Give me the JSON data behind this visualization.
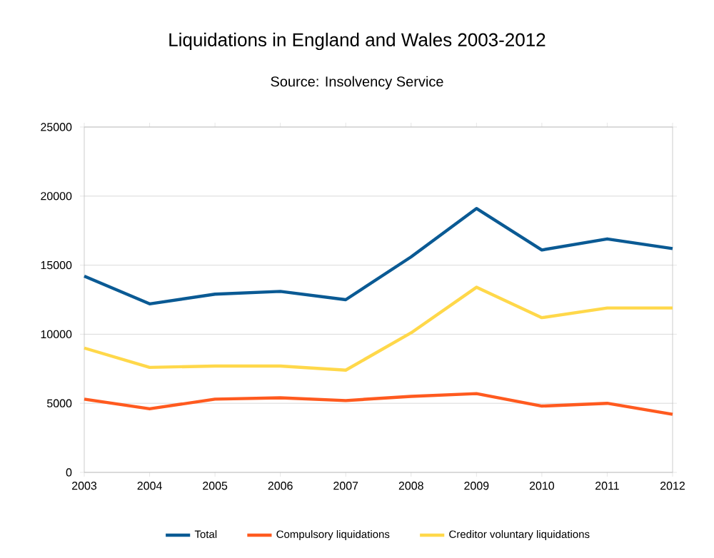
{
  "chart_data": {
    "type": "line",
    "title": "Liquidations in England and Wales 2003-2012",
    "subtitle": "Source: Insolvency Service",
    "categories": [
      "2003",
      "2004",
      "2005",
      "2006",
      "2007",
      "2008",
      "2009",
      "2010",
      "2011",
      "2012"
    ],
    "series": [
      {
        "name": "Total",
        "color": "#0a5a94",
        "values": [
          14200,
          12200,
          12900,
          13100,
          12500,
          15600,
          19100,
          16100,
          16900,
          16200
        ]
      },
      {
        "name": "Compulsory liquidations",
        "color": "#ff5a1f",
        "values": [
          5300,
          4600,
          5300,
          5400,
          5200,
          5500,
          5700,
          4800,
          5000,
          4200
        ]
      },
      {
        "name": "Creditor voluntary liquidations",
        "color": "#ffd84a",
        "values": [
          9000,
          7600,
          7700,
          7700,
          7400,
          10100,
          13400,
          11200,
          11900,
          11900
        ]
      }
    ],
    "ylim": [
      0,
      25000
    ],
    "yticks": [
      0,
      5000,
      10000,
      15000,
      20000,
      25000
    ],
    "grid": "y",
    "legend": "bottom",
    "marker": "none",
    "line_style": "solid"
  }
}
